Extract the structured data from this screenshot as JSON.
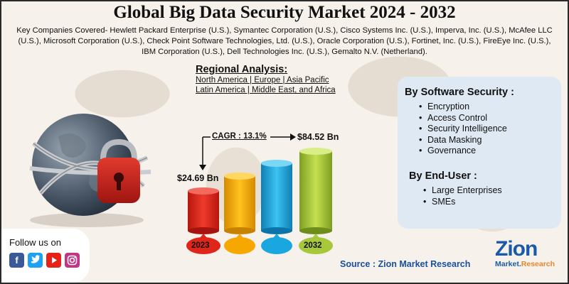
{
  "header": {
    "title": "Global Big Data Security Market 2024 - 2032",
    "companies": "Key Companies Covered- Hewlett Packard Enterprise (U.S.), Symantec Corporation (U.S.), Cisco Systems Inc. (U.S.), Imperva, Inc. (U.S.), McAfee LLC (U.S.), Microsoft Corporation (U.S.), Check Point Software Technologies, Ltd. (U.S.), Oracle Corporation (U.S.), Fortinet, Inc. (U.S.), FireEye Inc. (U.S.), IBM Corporation (U.S.), Dell Technologies Inc. (U.S.), Gemalto N.V. (Netherland)."
  },
  "regional": {
    "heading": "Regional Analysis:",
    "line1": "North America | Europe | Asia Pacific",
    "line2": "Latin America | Middle East, and Africa"
  },
  "growth": {
    "cagr": "CAGR : 13.1%",
    "start_value": "$24.69 Bn",
    "end_value": "$84.52 Bn",
    "year_start": "2023",
    "year_end": "2032"
  },
  "panel": {
    "software_heading": "By Software Security :",
    "software_items": [
      "Encryption",
      "Access Control",
      "Security Intelligence",
      "Data Masking",
      "Governance"
    ],
    "enduser_heading": "By End-User :",
    "enduser_items": [
      "Large Enterprises",
      "SMEs"
    ]
  },
  "follow": {
    "label": "Follow us on"
  },
  "social_icons": [
    "facebook-icon",
    "twitter-icon",
    "youtube-icon",
    "instagram-icon"
  ],
  "source": "Source : Zion Market Research",
  "logo": {
    "top": "Zion",
    "bottom_a": "Market.",
    "bottom_b": "Research"
  },
  "colors": {
    "bar1": "#e0251b",
    "bar2": "#f6a800",
    "bar3": "#1aa7e0",
    "bar4": "#a6c83a",
    "panel": "#dfe9f3",
    "source": "#1a4f9c"
  }
}
